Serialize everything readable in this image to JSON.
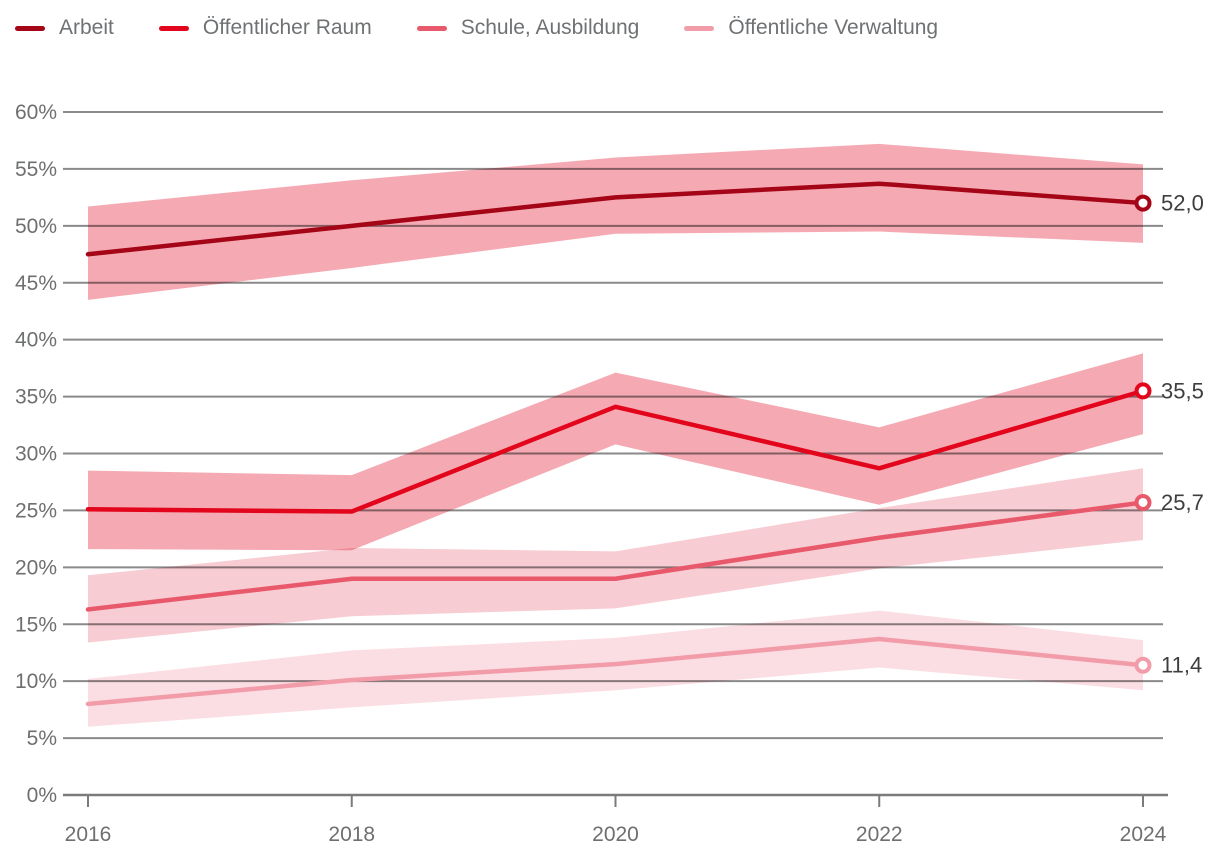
{
  "legend": {
    "items": [
      {
        "label": "Arbeit",
        "color": "#A40517"
      },
      {
        "label": "Öffentlicher Raum",
        "color": "#E2051B"
      },
      {
        "label": "Schule, Ausbildung",
        "color": "#E8596B"
      },
      {
        "label": "Öffentliche Verwaltung",
        "color": "#F29CA9"
      }
    ]
  },
  "chart_data": {
    "type": "line",
    "x": [
      2016,
      2018,
      2020,
      2022,
      2024
    ],
    "x_tick_labels": [
      "2016",
      "2018",
      "2020",
      "2022",
      "2024"
    ],
    "y_tick_labels": [
      "0%",
      "5%",
      "10%",
      "15%",
      "20%",
      "25%",
      "30%",
      "35%",
      "40%",
      "45%",
      "50%",
      "55%",
      "60%"
    ],
    "y_tick_values": [
      0,
      5,
      10,
      15,
      20,
      25,
      30,
      35,
      40,
      45,
      50,
      55,
      60
    ],
    "ylim": [
      0,
      60
    ],
    "xlim": [
      2016,
      2024
    ],
    "grid": true,
    "legend_position": "top-left",
    "series": [
      {
        "name": "Arbeit",
        "key": "arbeit",
        "color": "#A40517",
        "band_color": "#F5AAB3",
        "values": [
          47.5,
          50.0,
          52.5,
          53.7,
          52.0
        ],
        "band_low": [
          43.5,
          46.3,
          49.3,
          49.5,
          48.5
        ],
        "band_high": [
          51.7,
          54.0,
          56.0,
          57.2,
          55.4
        ],
        "end_label": "52,0"
      },
      {
        "name": "Öffentlicher Raum",
        "key": "oeffentlicher-raum",
        "color": "#E2051B",
        "band_color": "#F5AAB3",
        "values": [
          25.1,
          24.9,
          34.1,
          28.7,
          35.5
        ],
        "band_low": [
          21.6,
          21.5,
          30.8,
          25.5,
          31.7
        ],
        "band_high": [
          28.5,
          28.1,
          37.1,
          32.3,
          38.8
        ],
        "end_label": "35,5"
      },
      {
        "name": "Schule, Ausbildung",
        "key": "schule-ausbildung",
        "color": "#E8596B",
        "band_color": "#F8CCD3",
        "values": [
          16.3,
          19.0,
          19.0,
          22.6,
          25.7
        ],
        "band_low": [
          13.4,
          15.7,
          16.4,
          19.9,
          22.4
        ],
        "band_high": [
          19.3,
          21.7,
          21.4,
          25.2,
          28.7
        ],
        "end_label": "25,7"
      },
      {
        "name": "Öffentliche Verwaltung",
        "key": "oeffentliche-verwaltung",
        "color": "#F29CA9",
        "band_color": "#FBDEE3",
        "values": [
          8.0,
          10.1,
          11.5,
          13.7,
          11.4
        ],
        "band_low": [
          6.0,
          7.7,
          9.2,
          11.2,
          9.2
        ],
        "band_high": [
          10.2,
          12.7,
          13.8,
          16.2,
          13.6
        ],
        "end_label": "11,4"
      }
    ]
  },
  "style": {
    "grid_color": "#8A8A8A",
    "axis_color": "#7B7B7B",
    "tick_label_color": "#6E6F71",
    "end_label_color": "#3E3E3E",
    "background": "#FFFFFF"
  }
}
